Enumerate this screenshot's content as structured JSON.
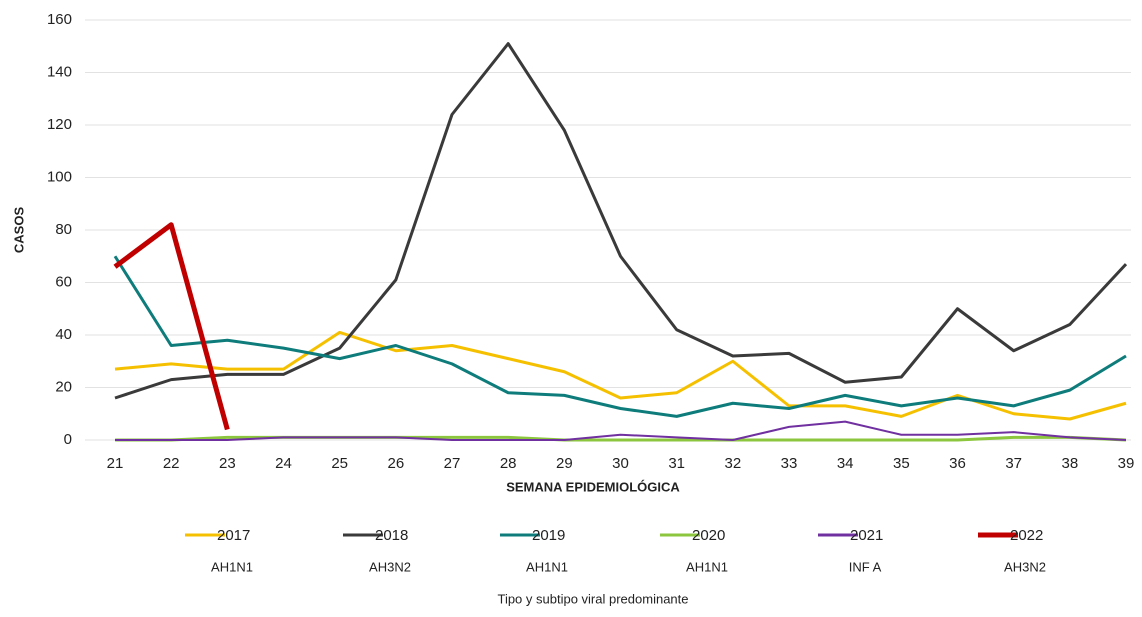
{
  "chart_data": {
    "type": "line",
    "y_label": "CASOS",
    "x_label": "SEMANA EPIDEMIOLÓGICA",
    "footnote": "Tipo y subtipo viral predominante",
    "categories": [
      "21",
      "22",
      "23",
      "24",
      "25",
      "26",
      "27",
      "28",
      "29",
      "30",
      "31",
      "32",
      "33",
      "34",
      "35",
      "36",
      "37",
      "38",
      "39"
    ],
    "ylim": [
      0,
      160
    ],
    "yticks": [
      0,
      20,
      40,
      60,
      80,
      100,
      120,
      140,
      160
    ],
    "grid": true,
    "series": [
      {
        "name": "2017",
        "subtype": "AH1N1",
        "color": "#f5c000",
        "width": 3,
        "values": [
          27,
          29,
          27,
          27,
          41,
          34,
          36,
          31,
          26,
          16,
          18,
          30,
          13,
          13,
          9,
          17,
          10,
          8,
          14
        ]
      },
      {
        "name": "2018",
        "subtype": "AH3N2",
        "color": "#3a3a3a",
        "width": 3,
        "values": [
          16,
          23,
          25,
          25,
          35,
          61,
          124,
          151,
          118,
          70,
          42,
          32,
          33,
          22,
          24,
          50,
          34,
          44,
          67
        ]
      },
      {
        "name": "2019",
        "subtype": "AH1N1",
        "color": "#0e7c7b",
        "width": 3,
        "values": [
          70,
          36,
          38,
          35,
          31,
          36,
          29,
          18,
          17,
          12,
          9,
          14,
          12,
          17,
          13,
          16,
          13,
          19,
          32
        ]
      },
      {
        "name": "2020",
        "subtype": "AH1N1",
        "color": "#8cc63f",
        "width": 3,
        "values": [
          0,
          0,
          1,
          1,
          1,
          1,
          1,
          1,
          0,
          0,
          0,
          0,
          0,
          0,
          0,
          0,
          1,
          1,
          0
        ]
      },
      {
        "name": "2021",
        "subtype": "INF A",
        "color": "#7030a0",
        "width": 2,
        "values": [
          0,
          0,
          0,
          1,
          1,
          1,
          0,
          0,
          0,
          2,
          1,
          0,
          5,
          7,
          2,
          2,
          3,
          1,
          0
        ]
      },
      {
        "name": "2022",
        "subtype": "AH3N2",
        "color": "#c00000",
        "width": 5,
        "values": [
          66,
          82,
          4,
          null,
          null,
          null,
          null,
          null,
          null,
          null,
          null,
          null,
          null,
          null,
          null,
          null,
          null,
          null,
          null
        ]
      }
    ]
  }
}
